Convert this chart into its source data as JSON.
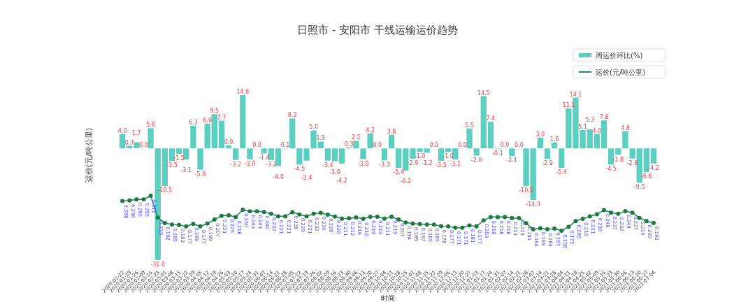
{
  "chart_data": {
    "type": "bar",
    "title": "日照市 - 安阳市 干线运输运价趋势",
    "ylabel": "运价(元/吨公里)",
    "xlabel": "时间",
    "legend": "top right",
    "marker": "circle",
    "tick_labels": "x",
    "categories": [
      "2020-01-12",
      "2020-01-19",
      "2020-01-26",
      "2020-02-09",
      "2020-02-16",
      "2020-02-23",
      "2020-03-01",
      "2020-03-08",
      "2020-03-15",
      "2020-03-22",
      "2020-03-29",
      "2020-04-05",
      "2020-04-12",
      "2020-04-19",
      "2020-04-26",
      "2020-05-03",
      "2020-05-10",
      "2020-05-17",
      "2020-05-24",
      "2020-05-31",
      "2020-06-07",
      "2020-06-14",
      "2020-06-21",
      "2020-06-28",
      "2020-07-05",
      "2020-07-12",
      "2020-07-19",
      "2020-07-26",
      "2020-08-02",
      "2020-08-09",
      "2020-08-16",
      "2020-08-23",
      "2020-08-30",
      "2020-09-06",
      "2020-09-13",
      "2020-09-20",
      "2020-09-27",
      "2020-10-04",
      "2020-10-11",
      "2020-10-18",
      "2020-10-25",
      "2020-11-01",
      "2020-11-08",
      "2020-11-15",
      "2020-11-22",
      "2020-11-29",
      "2020-12-06",
      "2020-12-13",
      "2020-12-20",
      "2020-12-27",
      "2021-01-03",
      "2021-01-17",
      "2021-01-24",
      "2021-01-31",
      "2021-02-07",
      "2021-02-14",
      "2021-02-21",
      "2021-02-28",
      "2021-03-07",
      "2021-03-14",
      "2021-03-21",
      "2021-03-28",
      "2021-04-04",
      "2021-04-11",
      "2021-04-18",
      "2021-04-25",
      "2021-05-02",
      "2021-05-09",
      "2021-05-16",
      "2021-05-23",
      "2021-05-30",
      "2021-06-06",
      "2021-06-13",
      "2021-06-20",
      "2021-06-27",
      "2021-07-04"
    ],
    "series": [
      {
        "name": "周运价环比(%)",
        "color": "#5dcfc1",
        "values": [
          4.0,
          0.7,
          1.7,
          0.0,
          5.6,
          -31.0,
          -10.5,
          -3.5,
          -1.5,
          -3.1,
          6.3,
          -5.9,
          6.9,
          9.5,
          7.7,
          0.9,
          -3.2,
          14.8,
          -3.0,
          0.0,
          -1.4,
          -3.2,
          -4.9,
          0.1,
          8.3,
          -4.5,
          -3.4,
          5.0,
          1.9,
          -3.4,
          -3.6,
          -4.2,
          0.3,
          2.1,
          -3.0,
          4.2,
          0.0,
          -3.3,
          3.8,
          -5.4,
          -6.2,
          -2.9,
          -1.0,
          -1.2,
          0.0,
          -3.5,
          -1.0,
          -3.1,
          0.0,
          5.5,
          -2.0,
          14.5,
          7.4,
          -0.1,
          0.0,
          -2.1,
          0.0,
          -10.5,
          -14.3,
          3.0,
          -2.9,
          1.6,
          -5.4,
          11.1,
          14.1,
          5.1,
          5.3,
          4.0,
          7.8,
          -4.5,
          -1.8,
          4.8,
          -2.8,
          -9.5,
          -6.6,
          -4.2
        ],
        "value_labels": [
          "4.0",
          "0.7",
          "1.7",
          "0.0",
          "5.6",
          "-31.0",
          "-10.5",
          "-3.5",
          "-1.5",
          "-3.1",
          "6.3",
          "-5.9",
          "6.9",
          "9.5",
          "7.7",
          "0.9",
          "-3.2",
          "14.8",
          "-3.0",
          "0.0",
          "-1.4",
          "-3.2",
          "-4.9",
          "0.1",
          "8.3",
          "-4.5",
          "-3.4",
          "5.0",
          "1.9",
          "-3.4",
          "-3.6",
          "-4.2",
          "0.3",
          "2.1",
          "-3.0",
          "4.2",
          "0.0",
          "-3.3",
          "3.8",
          "-5.4",
          "-6.2",
          "-2.9",
          "-1.0",
          "-1.2",
          "0.0",
          "-3.5",
          "-1.0",
          "-3.1",
          "0.0",
          "5.5",
          "-2.0",
          "14.5",
          "7.4",
          "-0.1",
          "0.0",
          "-2.1",
          "0.0",
          "-10.5",
          "-14.3",
          "3.0",
          "-2.9",
          "1.6",
          "-5.4",
          "11.1",
          "14.1",
          "5.1",
          "5.3",
          "4.0",
          "7.8",
          "-4.5",
          "-1.8",
          "4.8",
          "-2.8",
          "-9.5",
          "-6.6",
          "-4.2"
        ]
      },
      {
        "type": "line",
        "axis": "y2",
        "name": "运价(元/吨公里)",
        "color": "#1e8c74",
        "values": [
          0.288,
          0.29,
          0.295,
          0.295,
          0.311,
          0.215,
          0.192,
          0.185,
          0.183,
          0.177,
          0.188,
          0.177,
          0.189,
          0.207,
          0.223,
          0.225,
          0.218,
          0.25,
          0.243,
          0.243,
          0.24,
          0.232,
          0.221,
          0.221,
          0.239,
          0.229,
          0.221,
          0.232,
          0.236,
          0.228,
          0.22,
          0.211,
          0.212,
          0.216,
          0.21,
          0.219,
          0.219,
          0.211,
          0.219,
          0.207,
          0.194,
          0.189,
          0.187,
          0.185,
          0.185,
          0.178,
          0.177,
          0.171,
          0.171,
          0.181,
          0.177,
          0.203,
          0.218,
          0.218,
          0.218,
          0.213,
          0.213,
          0.191,
          0.164,
          0.169,
          0.164,
          0.167,
          0.158,
          0.175,
          0.2,
          0.21,
          0.221,
          0.23,
          0.248,
          0.237,
          0.232,
          0.244,
          0.237,
          0.214,
          0.2,
          0.192
        ],
        "value_labels": [
          "0.288",
          "0.290",
          "0.295",
          "0.295",
          "0.311",
          "0.215",
          "0.192",
          "0.185",
          "0.183",
          "0.177",
          "0.188",
          "0.177",
          "0.189",
          "0.207",
          "0.223",
          "0.225",
          "0.218",
          "0.250",
          "0.243",
          "0.243",
          "0.240",
          "0.232",
          "0.221",
          "0.221",
          "0.239",
          "0.229",
          "0.221",
          "0.232",
          "0.236",
          "0.228",
          "0.220",
          "0.211",
          "0.212",
          "0.216",
          "0.210",
          "0.219",
          "0.219",
          "0.211",
          "0.219",
          "0.207",
          "0.194",
          "0.189",
          "0.187",
          "0.185",
          "0.185",
          "0.178",
          "0.177",
          "0.171",
          "0.171",
          "0.181",
          "0.177",
          "0.203",
          "0.218",
          "0.218",
          "0.218",
          "0.213",
          "0.213",
          "0.191",
          "0.164",
          "0.169",
          "0.164",
          "0.167",
          "0.158",
          "0.175",
          "0.200",
          "0.210",
          "0.221",
          "0.230",
          "0.248",
          "0.237",
          "0.232",
          "0.244",
          "0.237",
          "0.214",
          "0.200",
          "0.192"
        ]
      }
    ]
  }
}
